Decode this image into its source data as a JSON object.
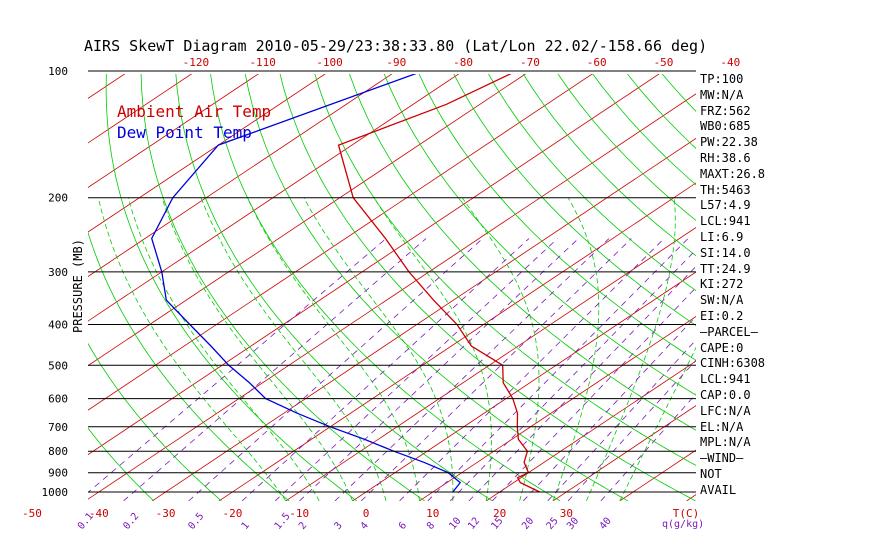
{
  "title": "AIRS SkewT Diagram 2010-05-29/23:38:33.80 (Lat/Lon 22.02/-158.66 deg)",
  "legend": {
    "ambient": {
      "label": "Ambient Air Temp",
      "color": "#cc0000"
    },
    "dewpoint": {
      "label": "Dew Point Temp",
      "color": "#0000dd"
    }
  },
  "ylabel": "PRESSURE (MB)",
  "stats": [
    "TP:100",
    "MW:N/A",
    "FRZ:562",
    "WB0:685",
    "PW:22.38",
    "RH:38.6",
    "MAXT:26.8",
    "TH:5463",
    "L57:4.9",
    "LCL:941",
    "LI:6.9",
    "SI:14.0",
    "TT:24.9",
    "KI:272",
    "SW:N/A",
    "EI:0.2",
    "—PARCEL—",
    "CAPE:0",
    "CINH:6308",
    "LCL:941",
    "CAP:0.0",
    "LFC:N/A",
    "EL:N/A",
    "MPL:N/A",
    "—WIND—",
    "NOT",
    "AVAIL"
  ],
  "colors": {
    "isotherm": "#cc0000",
    "dry_adiabat": "#00cc00",
    "moist_adiabat": "#00cc00",
    "mixing_ratio": "#7a1ab8",
    "pressure_line": "#000000"
  },
  "chart_data": {
    "type": "line",
    "yscale": "log",
    "pressure_ticks": [
      100,
      200,
      300,
      400,
      500,
      600,
      700,
      800,
      900,
      1000
    ],
    "temperature_ticks_top": [
      -120,
      -110,
      -100,
      -90,
      -80,
      -70,
      -60,
      -50,
      -40
    ],
    "temperature_ticks_bottom": [
      -50,
      -40,
      -30,
      -20,
      -10,
      0,
      10,
      20,
      30
    ],
    "bottom_axis_unit": "T(C)",
    "mixing_ratio_ticks": [
      "0.1",
      "0.2",
      "0.5",
      "1",
      "1.5",
      "2",
      "3",
      "4",
      "6",
      "8",
      "10",
      "12",
      "15",
      "20",
      "25",
      "30",
      "40"
    ],
    "mixing_ratio_unit": "q(g/kg)",
    "series": [
      {
        "name": "Ambient Air Temp",
        "pressure": [
          100,
          120,
          150,
          200,
          250,
          300,
          350,
          400,
          450,
          500,
          550,
          600,
          650,
          700,
          750,
          800,
          850,
          900,
          925,
          950,
          1000
        ],
        "temperature": [
          -72,
          -75,
          -82,
          -68,
          -54,
          -43,
          -33,
          -24,
          -17,
          -8,
          -4,
          1,
          5,
          8,
          11,
          15,
          17,
          20,
          19.5,
          21,
          26
        ]
      },
      {
        "name": "Dew Point Temp",
        "pressure": [
          100,
          150,
          200,
          250,
          300,
          350,
          400,
          450,
          500,
          550,
          600,
          650,
          700,
          750,
          800,
          850,
          900,
          950,
          1000
        ],
        "temperature": [
          -86,
          -100,
          -95,
          -89,
          -80,
          -73,
          -64,
          -56,
          -49,
          -42,
          -36,
          -28,
          -20,
          -12,
          -5,
          2,
          8,
          12,
          13
        ]
      }
    ]
  }
}
